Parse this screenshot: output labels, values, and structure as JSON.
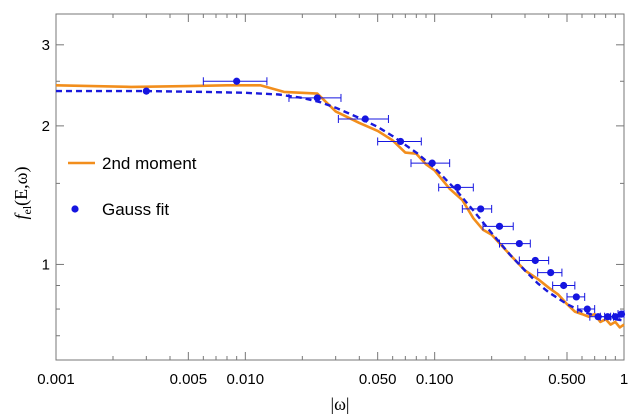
{
  "chart_data": {
    "type": "scatter",
    "xlabel": "|ω|",
    "ylabel_main": "f",
    "ylabel_sub": "el",
    "ylabel_args": "(E,ω)",
    "x_scale": "log",
    "y_scale": "log",
    "xlim": [
      0.001,
      1
    ],
    "ylim": [
      0.62,
      3.5
    ],
    "x_ticks": [
      {
        "value": 0.001,
        "label": "0.001"
      },
      {
        "value": 0.005,
        "label": "0.005"
      },
      {
        "value": 0.01,
        "label": "0.010"
      },
      {
        "value": 0.05,
        "label": "0.050"
      },
      {
        "value": 0.1,
        "label": "0.100"
      },
      {
        "value": 0.5,
        "label": "0.500"
      },
      {
        "value": 1,
        "label": "1"
      }
    ],
    "y_ticks": [
      {
        "value": 1,
        "label": "1"
      },
      {
        "value": 2,
        "label": "2"
      },
      {
        "value": 3,
        "label": "3"
      }
    ],
    "legend_position": "left",
    "series": [
      {
        "name": "2nd moment",
        "type": "line",
        "color": "#f28e1c",
        "x": [
          0.001,
          0.0025,
          0.005,
          0.008,
          0.012,
          0.016,
          0.024,
          0.03,
          0.04,
          0.05,
          0.06,
          0.07,
          0.08,
          0.09,
          0.1,
          0.12,
          0.14,
          0.16,
          0.18,
          0.2,
          0.25,
          0.3,
          0.35,
          0.4,
          0.45,
          0.5,
          0.55,
          0.6,
          0.65,
          0.7,
          0.75,
          0.8,
          0.85,
          0.9,
          0.95,
          1.0
        ],
        "y": [
          2.45,
          2.43,
          2.44,
          2.45,
          2.45,
          2.37,
          2.35,
          2.15,
          2.03,
          1.95,
          1.86,
          1.75,
          1.74,
          1.65,
          1.6,
          1.46,
          1.38,
          1.26,
          1.19,
          1.16,
          1.05,
          0.97,
          0.93,
          0.89,
          0.86,
          0.82,
          0.79,
          0.78,
          0.77,
          0.78,
          0.75,
          0.76,
          0.74,
          0.75,
          0.73,
          0.74
        ]
      },
      {
        "name": "",
        "type": "dashed",
        "color": "#1a1adb",
        "x": [
          0.001,
          0.003,
          0.006,
          0.01,
          0.015,
          0.02,
          0.025,
          0.03,
          0.04,
          0.05,
          0.06,
          0.08,
          0.1,
          0.13,
          0.16,
          0.2,
          0.25,
          0.3,
          0.35,
          0.4,
          0.5,
          0.6,
          0.7,
          0.8,
          0.9,
          1.0
        ],
        "y": [
          2.38,
          2.38,
          2.37,
          2.36,
          2.34,
          2.3,
          2.25,
          2.19,
          2.08,
          1.99,
          1.9,
          1.75,
          1.62,
          1.45,
          1.31,
          1.17,
          1.05,
          0.97,
          0.91,
          0.87,
          0.82,
          0.79,
          0.775,
          0.765,
          0.76,
          0.755
        ]
      },
      {
        "name": "Gauss fit",
        "type": "points",
        "color": "#1515e0",
        "points": [
          {
            "x": 0.003,
            "y": 2.38,
            "xerr": null
          },
          {
            "x": 0.009,
            "y": 2.5,
            "xerr": [
              0.006,
              0.013
            ]
          },
          {
            "x": 0.024,
            "y": 2.3,
            "xerr": [
              0.017,
              0.032
            ]
          },
          {
            "x": 0.043,
            "y": 2.07,
            "xerr": [
              0.031,
              0.057
            ]
          },
          {
            "x": 0.066,
            "y": 1.85,
            "xerr": [
              0.05,
              0.085
            ]
          },
          {
            "x": 0.097,
            "y": 1.66,
            "xerr": [
              0.075,
              0.12
            ]
          },
          {
            "x": 0.132,
            "y": 1.47,
            "xerr": [
              0.105,
              0.16
            ]
          },
          {
            "x": 0.175,
            "y": 1.32,
            "xerr": [
              0.14,
              0.2
            ]
          },
          {
            "x": 0.22,
            "y": 1.21,
            "xerr": [
              0.18,
              0.26
            ]
          },
          {
            "x": 0.28,
            "y": 1.11,
            "xerr": [
              0.22,
              0.32
            ]
          },
          {
            "x": 0.34,
            "y": 1.02,
            "xerr": [
              0.28,
              0.4
            ]
          },
          {
            "x": 0.41,
            "y": 0.96,
            "xerr": [
              0.35,
              0.47
            ]
          },
          {
            "x": 0.48,
            "y": 0.9,
            "xerr": [
              0.42,
              0.55
            ]
          },
          {
            "x": 0.56,
            "y": 0.85,
            "xerr": [
              0.5,
              0.62
            ]
          },
          {
            "x": 0.64,
            "y": 0.8,
            "xerr": [
              0.57,
              0.7
            ]
          },
          {
            "x": 0.73,
            "y": 0.77,
            "xerr": [
              0.66,
              0.79
            ]
          },
          {
            "x": 0.82,
            "y": 0.77,
            "xerr": [
              0.75,
              0.88
            ]
          },
          {
            "x": 0.9,
            "y": 0.77,
            "xerr": [
              0.85,
              0.95
            ]
          },
          {
            "x": 0.97,
            "y": 0.78,
            "xerr": [
              0.93,
              1.0
            ]
          }
        ]
      }
    ],
    "legend": [
      {
        "label": "2nd moment",
        "marker": "line",
        "color": "#f28e1c"
      },
      {
        "label": "Gauss fit",
        "marker": "dot",
        "color": "#1515e0"
      }
    ]
  }
}
